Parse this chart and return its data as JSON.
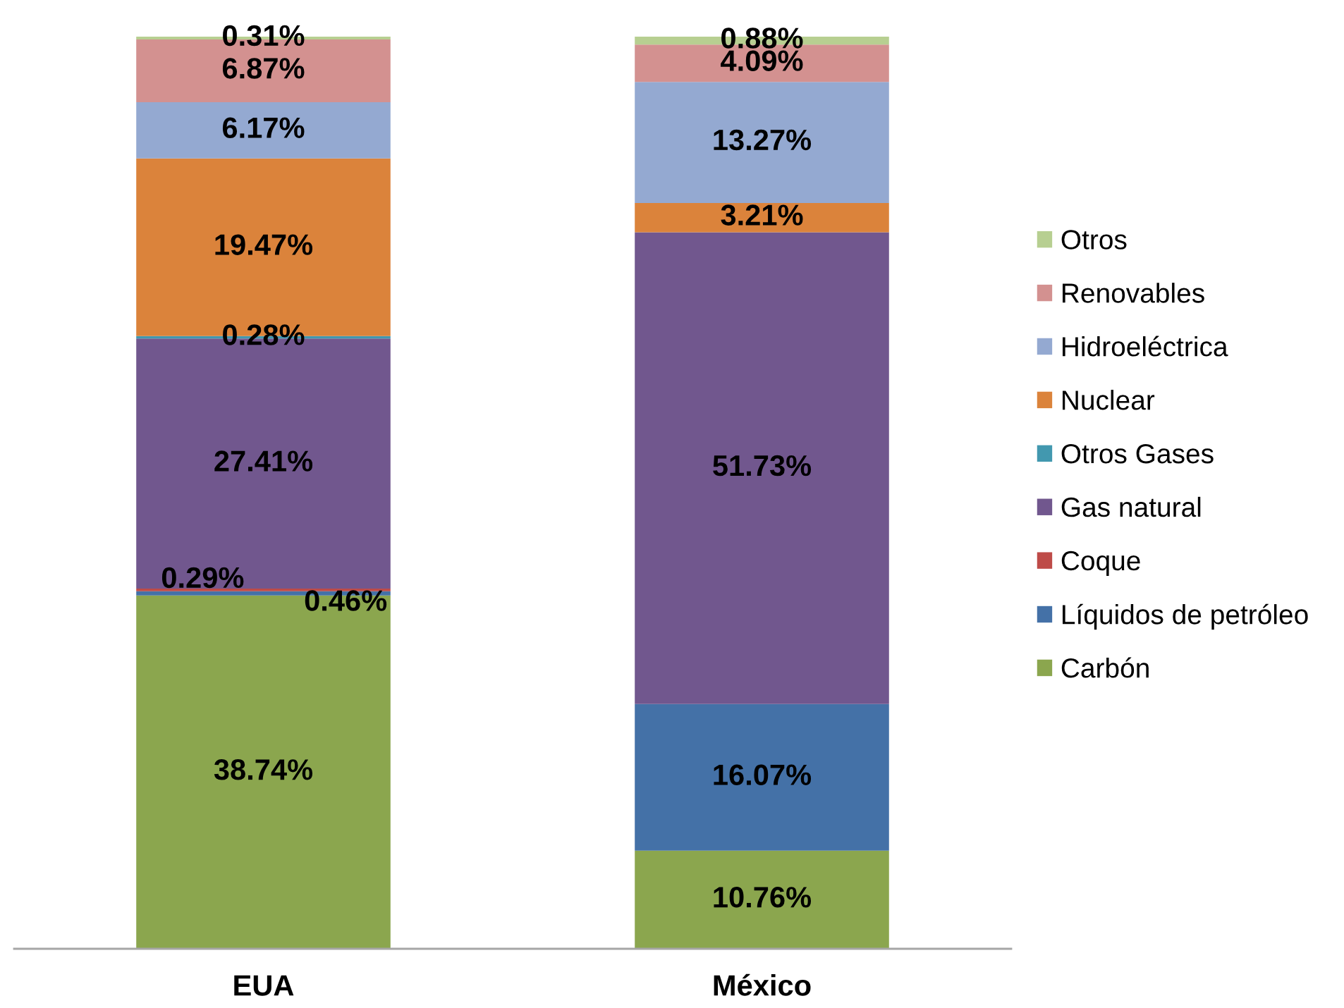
{
  "chart_data": {
    "type": "bar",
    "stacked": true,
    "categories": [
      "EUA",
      "México"
    ],
    "ylim": [
      0,
      100
    ],
    "tick_labels": "x",
    "legend": "right",
    "series": [
      {
        "name": "Carbón",
        "color": "#8ba64e",
        "values": [
          38.74,
          10.76
        ],
        "value_labels": [
          "38.74%",
          "10.76%"
        ]
      },
      {
        "name": "Líquidos de petróleo",
        "color": "#4471a7",
        "values": [
          0.46,
          16.07
        ],
        "value_labels": [
          "0.46%",
          "16.07%"
        ]
      },
      {
        "name": "Coque",
        "color": "#be4b48",
        "values": [
          0.29,
          null
        ],
        "value_labels": [
          "0.29%",
          null
        ]
      },
      {
        "name": "Gas natural",
        "color": "#71578e",
        "values": [
          27.41,
          51.73
        ],
        "value_labels": [
          "27.41%",
          "51.73%"
        ]
      },
      {
        "name": "Otros Gases",
        "color": "#4298af",
        "values": [
          0.28,
          null
        ],
        "value_labels": [
          "0.28%",
          null
        ]
      },
      {
        "name": "Nuclear",
        "color": "#db833b",
        "values": [
          19.47,
          3.21
        ],
        "value_labels": [
          "19.47%",
          "3.21%"
        ]
      },
      {
        "name": "Hidroeléctrica",
        "color": "#94a9d1",
        "values": [
          6.17,
          13.27
        ],
        "value_labels": [
          "6.17%",
          "13.27%"
        ]
      },
      {
        "name": "Renovables",
        "color": "#d39190",
        "values": [
          6.87,
          4.09
        ],
        "value_labels": [
          "6.87%",
          "4.09%"
        ]
      },
      {
        "name": "Otros",
        "color": "#b7cf91",
        "values": [
          0.31,
          0.88
        ],
        "value_labels": [
          "0.31%",
          "0.88%"
        ]
      }
    ]
  }
}
